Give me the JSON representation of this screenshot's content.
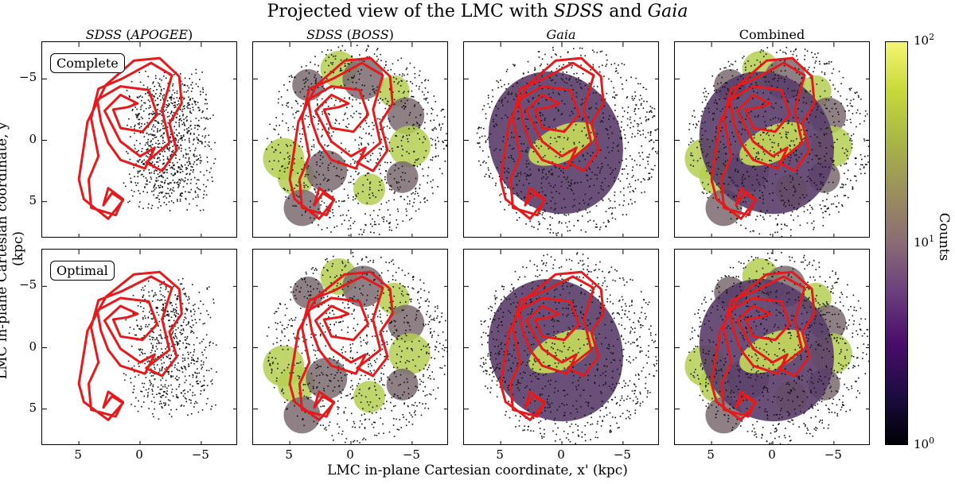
{
  "figure": {
    "title_parts": [
      {
        "text": "Projected view of the LMC with ",
        "italic": false
      },
      {
        "text": "SDSS",
        "italic": true
      },
      {
        "text": " and ",
        "italic": false
      },
      {
        "text": "Gaia",
        "italic": true
      }
    ],
    "columns": [
      {
        "label_parts": [
          {
            "text": "SDSS",
            "italic": true
          },
          {
            "text": " (",
            "italic": false
          },
          {
            "text": "APOGEE",
            "italic": true
          },
          {
            "text": ")",
            "italic": false
          }
        ]
      },
      {
        "label_parts": [
          {
            "text": "SDSS",
            "italic": true
          },
          {
            "text": " (",
            "italic": false
          },
          {
            "text": "BOSS",
            "italic": true
          },
          {
            "text": ")",
            "italic": false
          }
        ]
      },
      {
        "label_parts": [
          {
            "text": "Gaia",
            "italic": true
          }
        ]
      },
      {
        "label_parts": [
          {
            "text": "Combined",
            "italic": false
          }
        ]
      }
    ],
    "row_badges": [
      "Complete",
      "Optimal"
    ],
    "xlabel": "LMC in-plane Cartesian coordinate, x' (kpc)",
    "ylabel": "LMC in-plane Cartesian coordinate, y' (kpc)",
    "colorbar": {
      "label": "Counts",
      "scale": "log",
      "tick_labels": [
        "10^2",
        "10^1",
        "10^0"
      ],
      "ticks": [
        100,
        10,
        1
      ]
    },
    "colors": {
      "contour": "#e41a1c",
      "high_density": "#c2e05a",
      "low_density": "#3a2350"
    }
  },
  "chart_data": {
    "type": "heatmap",
    "grid": "4x2 panels",
    "xlim": [
      8,
      -8
    ],
    "ylim": [
      8,
      -8
    ],
    "x_ticks": [
      5,
      0,
      -5
    ],
    "y_ticks": [
      -5,
      0,
      5
    ],
    "x_tick_labels": [
      "5",
      "0",
      "−5"
    ],
    "y_tick_labels": [
      "−5",
      "0",
      "5"
    ],
    "color_scale": {
      "min": 1,
      "max": 100,
      "scale": "log"
    },
    "panels": [
      {
        "row": "Complete",
        "column": "SDSS (APOGEE)"
      },
      {
        "row": "Complete",
        "column": "SDSS (BOSS)"
      },
      {
        "row": "Complete",
        "column": "Gaia"
      },
      {
        "row": "Complete",
        "column": "Combined"
      },
      {
        "row": "Optimal",
        "column": "SDSS (APOGEE)"
      },
      {
        "row": "Optimal",
        "column": "SDSS (BOSS)"
      },
      {
        "row": "Optimal",
        "column": "Gaia"
      },
      {
        "row": "Optimal",
        "column": "Combined"
      }
    ]
  }
}
